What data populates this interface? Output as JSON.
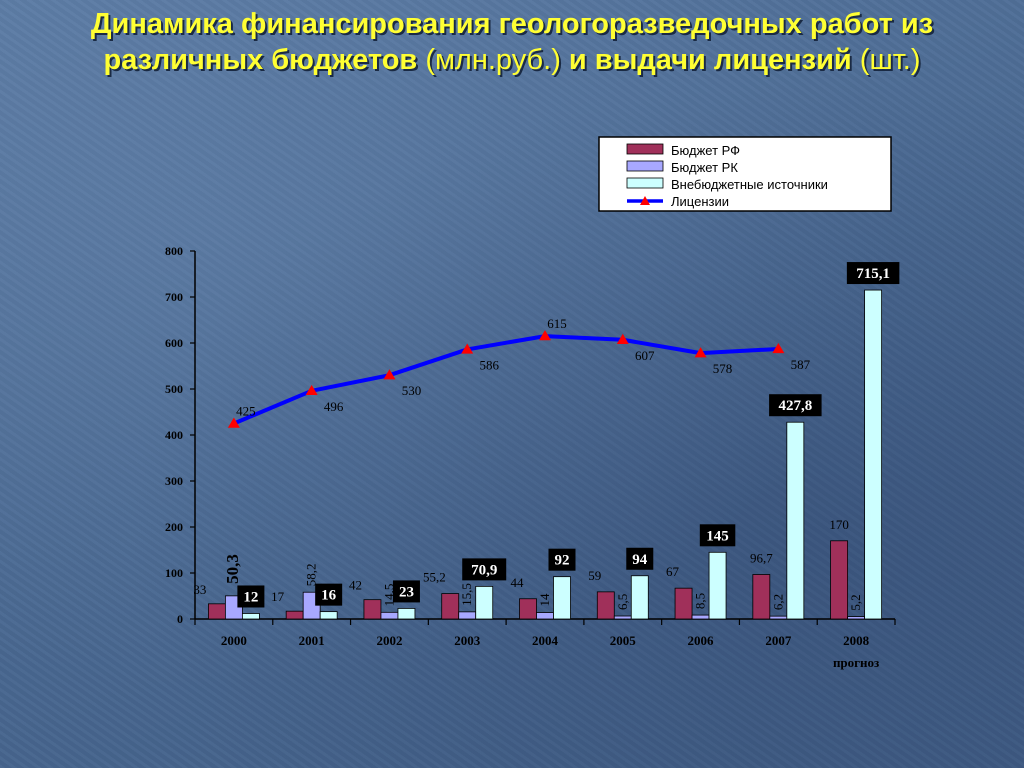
{
  "title": {
    "line1": "Динамика финансирования геологоразведочных работ из",
    "line2_bold_a": "различных бюджетов",
    "line2_norm_a": " (млн.руб.) ",
    "line2_bold_b": "и выдачи лицензий",
    "line2_norm_b": " (шт.)"
  },
  "colors": {
    "budget_rf": "#a0305a",
    "budget_rk": "#a8a8ff",
    "offbudget": "#ccffff",
    "licenses": "#0000ff",
    "license_marker": "#ff0000"
  },
  "chart_data": {
    "type": "bar",
    "categories": [
      "2000",
      "2001",
      "2002",
      "2003",
      "2004",
      "2005",
      "2006",
      "2007",
      "2008"
    ],
    "category_sublabels": [
      "",
      "",
      "",
      "",
      "",
      "",
      "",
      "",
      "прогноз"
    ],
    "ylim": [
      0,
      800
    ],
    "yticks": [
      0,
      100,
      200,
      300,
      400,
      500,
      600,
      700,
      800
    ],
    "series": [
      {
        "name": "Бюджет РФ",
        "values": [
          33,
          17,
          42,
          55.2,
          44,
          59,
          67,
          96.7,
          170
        ],
        "labels": [
          "33",
          "17",
          "42",
          "55,2",
          "44",
          "59",
          "67",
          "96,7",
          "170"
        ]
      },
      {
        "name": "Бюджет РК",
        "values": [
          50.3,
          58.2,
          14.5,
          15.5,
          14,
          6.5,
          8.5,
          6.2,
          5.2
        ],
        "labels": [
          "50,3",
          "58,2",
          "14,5",
          "15,5",
          "14",
          "6,5",
          "8,5",
          "6,2",
          "5,2"
        ]
      },
      {
        "name": "Внебюджетные источники",
        "values": [
          12,
          16,
          23,
          70.9,
          92,
          94,
          145,
          427.8,
          715.1
        ],
        "labels": [
          "12",
          "16",
          "23",
          "70,9",
          "92",
          "94",
          "145",
          "427,8",
          "715,1"
        ]
      }
    ],
    "line_series": {
      "name": "Лицензии",
      "values": [
        425,
        496,
        530,
        586,
        615,
        607,
        578,
        587
      ],
      "labels": [
        "425",
        "496",
        "530",
        "586",
        "615",
        "607",
        "578",
        "587"
      ]
    },
    "legend_position": "top-right",
    "grid": false
  }
}
